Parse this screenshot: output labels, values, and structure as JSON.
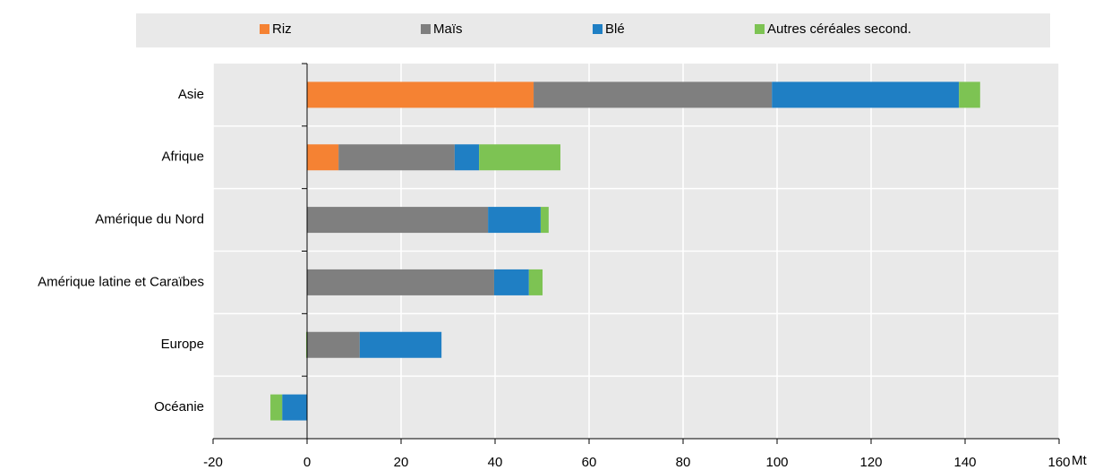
{
  "chart_data": {
    "type": "stacked_barh",
    "categories": [
      "Asie",
      "Afrique",
      "Amérique du Nord",
      "Amérique latine et Caraïbes",
      "Europe",
      "Océanie"
    ],
    "series": [
      {
        "name": "Riz",
        "color": "#f58233",
        "values": [
          48.2,
          6.7,
          0,
          0,
          0,
          0
        ]
      },
      {
        "name": "Maïs",
        "color": "#7f7f7f",
        "values": [
          50.7,
          24.7,
          38.5,
          39.8,
          11.2,
          0
        ]
      },
      {
        "name": "Blé",
        "color": "#1f7fc4",
        "values": [
          39.8,
          5.2,
          11.2,
          7.4,
          17.4,
          -5.3
        ]
      },
      {
        "name": "Autres céréales second.",
        "color": "#7dc353",
        "values": [
          4.5,
          17.3,
          1.7,
          2.9,
          -0.2,
          -2.5
        ]
      }
    ],
    "x_label": "Mt",
    "xlim": [
      -20,
      160
    ],
    "xticks": [
      -20,
      0,
      20,
      40,
      60,
      80,
      100,
      120,
      140,
      160
    ],
    "grid": true,
    "legend": "top"
  }
}
